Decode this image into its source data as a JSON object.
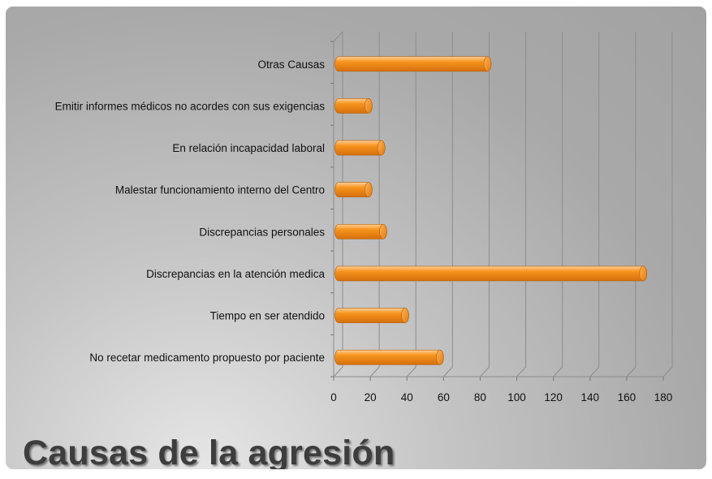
{
  "chart_data": {
    "type": "bar",
    "orientation": "horizontal",
    "title": "Causas de la agresión",
    "categories": [
      "Otras Causas",
      "Emitir informes médicos no acordes con sus exigencias",
      "En relación incapacidad laboral",
      "Malestar funcionamiento interno del Centro",
      "Discrepancias personales",
      "Discrepancias en la atención medica",
      "Tiempo en ser atendido",
      "No recetar medicamento propuesto por paciente"
    ],
    "values": [
      84,
      19,
      26,
      19,
      27,
      169,
      39,
      58
    ],
    "xlim": [
      0,
      180
    ],
    "xticks": [
      "0",
      "20",
      "40",
      "60",
      "80",
      "100",
      "120",
      "140",
      "160",
      "180"
    ],
    "grid": true,
    "legend": "none",
    "bar_color": "#f7941d",
    "bar_highlight": "#ffc27a",
    "bar_shadow": "#d4700c"
  }
}
